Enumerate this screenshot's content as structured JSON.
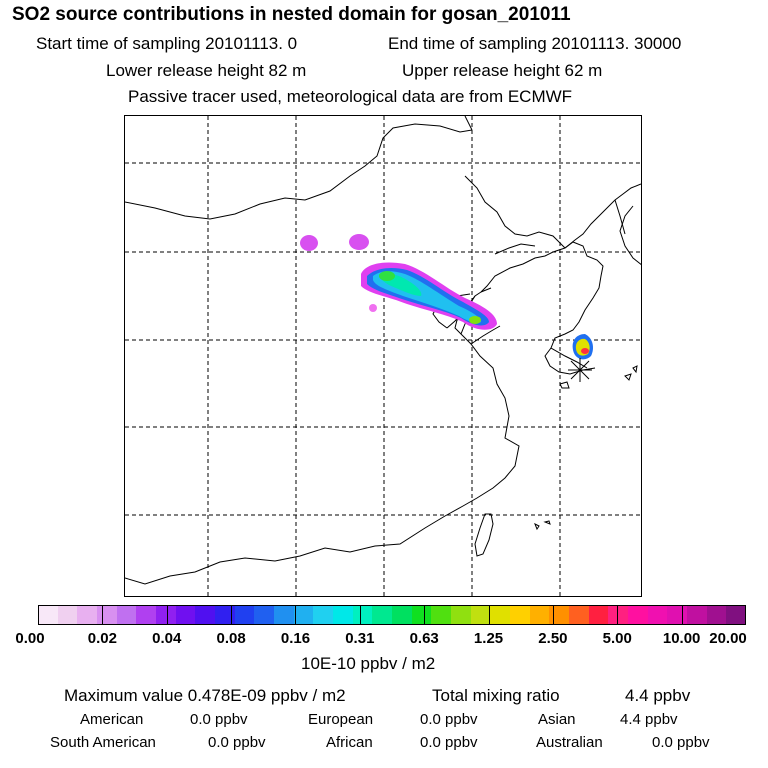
{
  "header": {
    "title": "SO2 source contributions in nested domain for gosan_201011",
    "start_time": "Start time of sampling 20101113.     0",
    "end_time": "End time of sampling 20101113. 30000",
    "lower_release": "Lower release height   82 m",
    "upper_release": "Upper release height   62 m",
    "note": "Passive tracer used, meteorological data are from ECMWF"
  },
  "colorbar": {
    "colors": [
      "#f8e8f8",
      "#f0d0f0",
      "#e8b0f0",
      "#d890f0",
      "#c070f0",
      "#b040f0",
      "#9020f0",
      "#7010f0",
      "#5010f0",
      "#3020f0",
      "#2040f0",
      "#2060f0",
      "#2090f0",
      "#20b0f0",
      "#20d0f0",
      "#00e8e8",
      "#00f0c0",
      "#00e890",
      "#00e060",
      "#10e020",
      "#50e010",
      "#90e010",
      "#c0e010",
      "#e0e000",
      "#ffd000",
      "#ffb000",
      "#ff9000",
      "#ff6020",
      "#ff2040",
      "#ff2080",
      "#ff10a0",
      "#f010b0",
      "#e010b0",
      "#c010a0",
      "#a01090",
      "#801080"
    ],
    "tick_labels": [
      "0.00",
      "0.02",
      "0.04",
      "0.08",
      "0.16",
      "0.31",
      "0.63",
      "1.25",
      "2.50",
      "5.00",
      "10.00",
      "20.00"
    ],
    "unit_label": "10E-10 ppbv / m2"
  },
  "summary": {
    "max_value": "Maximum value  0.478E-09 ppbv / m2",
    "total_mixing": "Total mixing ratio",
    "total_value": "4.4 ppbv"
  },
  "regions": [
    {
      "name": "American",
      "value": "0.0 ppbv"
    },
    {
      "name": "European",
      "value": "0.0 ppbv"
    },
    {
      "name": "Asian",
      "value": "4.4 ppbv"
    },
    {
      "name": "South American",
      "value": "0.0 ppbv"
    },
    {
      "name": "African",
      "value": "0.0 ppbv"
    },
    {
      "name": "Australian",
      "value": "0.0 ppbv"
    }
  ]
}
